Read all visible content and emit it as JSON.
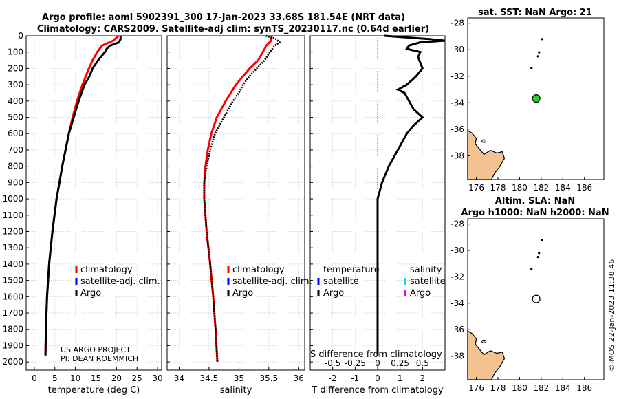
{
  "header": {
    "title_line1": "Argo profile: aoml 5902391_300 17-Jan-2023 33.68S 181.54E (NRT data)",
    "title_line2": "Climatology: CARS2009. Satellite-adj clim: synTS_20230117.nc (0.64d earlier)"
  },
  "project": {
    "line1": "US ARGO PROJECT",
    "line2": "PI: DEAN ROEMMICH"
  },
  "timestamp": "©IMOS 22-Jan-2023 11:38:46",
  "colors": {
    "climatology": "#ff0000",
    "satellite_clim": "#0000ff",
    "argo": "#000000",
    "sat_salinity": "#00e5ee",
    "argo_salinity": "#ee00ee",
    "land": "#f5c292",
    "float": "#33cc33"
  },
  "chart_data": [
    {
      "type": "line",
      "title": "",
      "xlabel": "temperature (deg C)",
      "ylabel": "depth",
      "xlim": [
        -2,
        31
      ],
      "ylim": [
        2050,
        0
      ],
      "xticks": [
        "0",
        "5",
        "10",
        "15",
        "20",
        "25",
        "30"
      ],
      "yticks": [
        "0",
        "100",
        "200",
        "300",
        "400",
        "500",
        "600",
        "700",
        "800",
        "900",
        "1000",
        "1100",
        "1200",
        "1300",
        "1400",
        "1500",
        "1600",
        "1700",
        "1800",
        "1900",
        "2000"
      ],
      "legend": [
        "climatology",
        "satellite-adj. clim.",
        "Argo"
      ],
      "series": [
        {
          "name": "climatology",
          "depth": [
            0,
            30,
            60,
            100,
            150,
            200,
            300,
            400,
            500,
            600,
            700,
            800,
            900,
            1000,
            1200,
            1400,
            1600,
            1800,
            1960
          ],
          "values": [
            20.5,
            19.2,
            16.5,
            15.3,
            14.2,
            13.3,
            11.7,
            10.4,
            9.3,
            8.4,
            7.6,
            6.8,
            6.1,
            5.4,
            4.4,
            3.6,
            3.1,
            2.8,
            2.7
          ]
        },
        {
          "name": "Argo",
          "depth": [
            0,
            20,
            40,
            60,
            80,
            100,
            150,
            200,
            250,
            300,
            400,
            500,
            600,
            700,
            800,
            900,
            1000,
            1200,
            1400,
            1600,
            1800,
            1960
          ],
          "values": [
            21.0,
            21.0,
            20.6,
            18.5,
            17.6,
            17.2,
            15.5,
            14.2,
            13.4,
            12.2,
            10.8,
            9.6,
            8.4,
            7.6,
            6.8,
            6.1,
            5.4,
            4.4,
            3.6,
            3.1,
            2.8,
            2.7
          ]
        }
      ]
    },
    {
      "type": "line",
      "title": "",
      "xlabel": "salinity",
      "ylabel": "depth",
      "xlim": [
        33.8,
        36.1
      ],
      "ylim": [
        2050,
        0
      ],
      "xticks": [
        "34",
        "34.5",
        "35",
        "35.5",
        "36"
      ],
      "legend": [
        "climatology",
        "satellite-adj. clim.",
        "Argo"
      ],
      "series": [
        {
          "name": "climatology",
          "depth": [
            0,
            30,
            60,
            100,
            150,
            200,
            300,
            400,
            500,
            600,
            700,
            800,
            900,
            1000,
            1200,
            1400,
            1600,
            1800,
            2000
          ],
          "values": [
            35.55,
            35.54,
            35.46,
            35.4,
            35.32,
            35.18,
            34.95,
            34.78,
            34.63,
            34.54,
            34.48,
            34.44,
            34.42,
            34.42,
            34.46,
            34.52,
            34.57,
            34.61,
            34.64
          ]
        },
        {
          "name": "Argo",
          "depth": [
            0,
            20,
            40,
            60,
            80,
            100,
            150,
            200,
            250,
            300,
            350,
            400,
            500,
            600,
            700,
            800,
            900,
            1000,
            1200,
            1400,
            1600,
            1800,
            2000
          ],
          "values": [
            35.45,
            35.62,
            35.68,
            35.6,
            35.56,
            35.52,
            35.43,
            35.3,
            35.17,
            35.07,
            35.0,
            34.9,
            34.75,
            34.6,
            34.52,
            34.46,
            34.42,
            34.42,
            34.46,
            34.52,
            34.57,
            34.61,
            34.64
          ]
        }
      ]
    },
    {
      "type": "line",
      "title": "",
      "xlabel": "T difference from climatology",
      "xlabel_top": "S difference from climatology",
      "xlim": [
        -3,
        3
      ],
      "ylim": [
        2050,
        0
      ],
      "xticks": [
        "-2",
        "-1",
        "0",
        "1",
        "2"
      ],
      "xticks_top": [
        "-0.5",
        "-0.25",
        "0",
        "0.25",
        "0.5"
      ],
      "legend_temperature": {
        "heading": "temperature",
        "items": [
          "satellite",
          "Argo"
        ]
      },
      "legend_salinity": {
        "heading": "salinity",
        "items": [
          "satellite",
          "Argo"
        ]
      },
      "series": [
        {
          "name": "T difference (Argo)",
          "depth": [
            0,
            20,
            30,
            40,
            60,
            80,
            100,
            130,
            200,
            250,
            300,
            330,
            350,
            400,
            450,
            500,
            550,
            600,
            700,
            800,
            900,
            1000,
            1200,
            1400,
            1600,
            1800,
            1960
          ],
          "values": [
            0.3,
            2.3,
            3.0,
            1.9,
            1.4,
            1.3,
            1.9,
            1.8,
            2.0,
            1.7,
            1.3,
            0.9,
            1.2,
            1.4,
            1.6,
            2.0,
            1.6,
            1.3,
            0.9,
            0.5,
            0.2,
            0.0,
            0.0,
            0.0,
            0.0,
            0.0,
            0.0
          ]
        }
      ]
    },
    {
      "type": "scatter",
      "title": "sat. SST: NaN Argo: 21",
      "xlim": [
        175.2,
        187.8
      ],
      "ylim": [
        -39.8,
        -27.6
      ],
      "xticks": [
        "176",
        "178",
        "180",
        "182",
        "184",
        "186"
      ],
      "yticks": [
        "-28",
        "-30",
        "-32",
        "-34",
        "-36",
        "-38"
      ],
      "track": [
        [
          182.1,
          -29.2
        ],
        [
          181.8,
          -30.2
        ],
        [
          181.7,
          -30.5
        ],
        [
          181.1,
          -31.4
        ]
      ],
      "float_position": [
        181.54,
        -33.68
      ]
    },
    {
      "type": "scatter",
      "title_line1": "Altim. SLA: NaN",
      "title_line2": "Argo h1000: NaN h2000: NaN",
      "xlim": [
        175.2,
        187.8
      ],
      "ylim": [
        -39.8,
        -27.6
      ],
      "xticks": [
        "176",
        "178",
        "180",
        "182",
        "184",
        "186"
      ],
      "yticks": [
        "-28",
        "-30",
        "-32",
        "-34",
        "-36",
        "-38"
      ],
      "track": [
        [
          182.1,
          -29.2
        ],
        [
          181.8,
          -30.2
        ],
        [
          181.7,
          -30.5
        ],
        [
          181.1,
          -31.4
        ]
      ],
      "float_position": [
        181.54,
        -33.68
      ]
    }
  ]
}
